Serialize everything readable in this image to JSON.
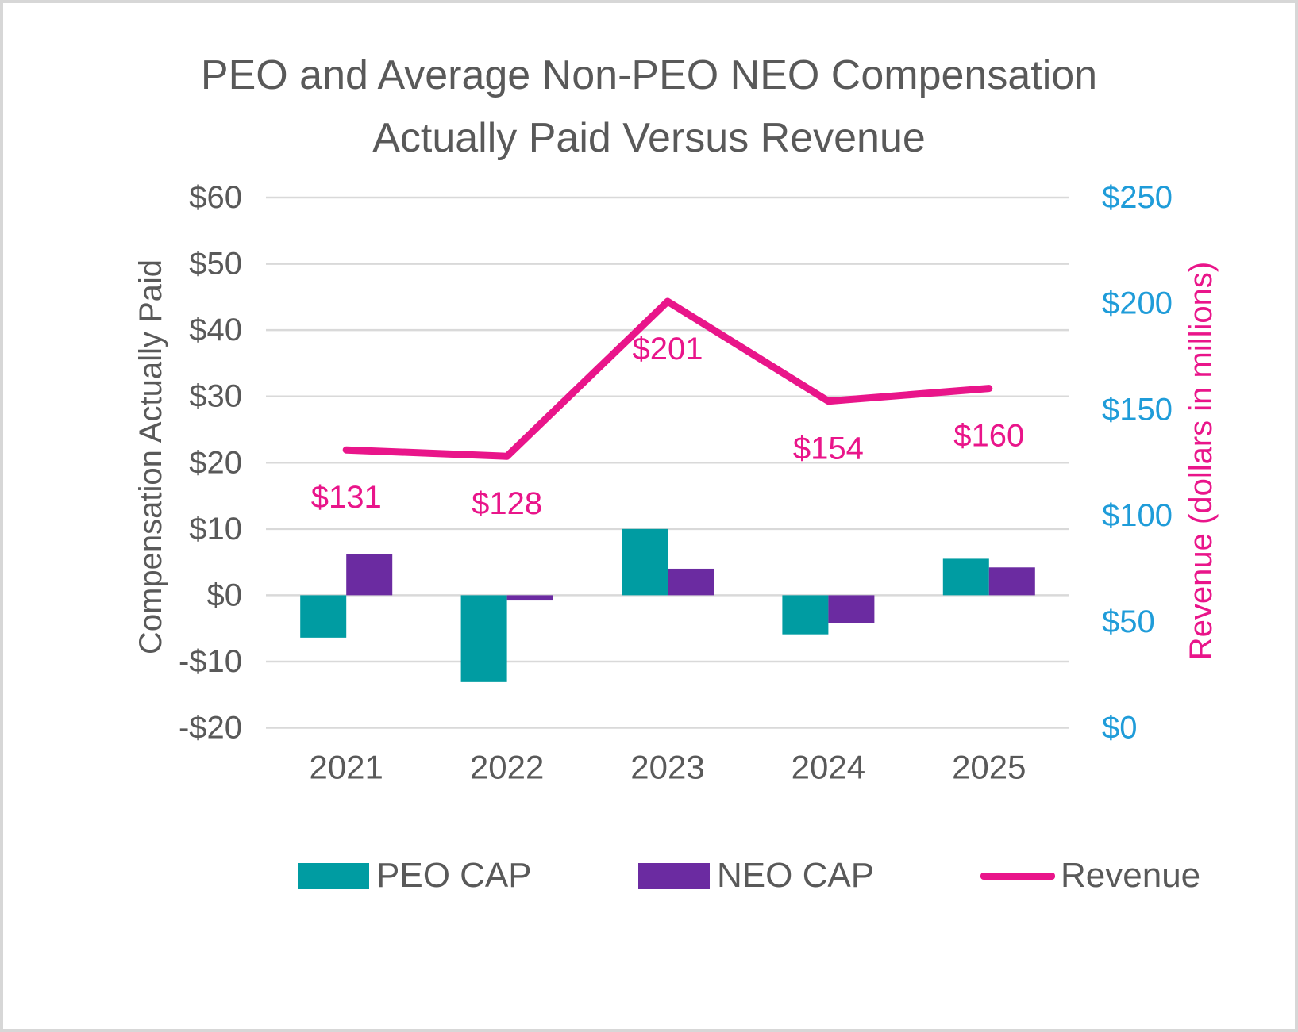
{
  "title": {
    "line1": "PEO and Average Non-PEO NEO Compensation",
    "line2": "Actually Paid Versus Revenue"
  },
  "chart_data": {
    "type": "combo",
    "categories": [
      "2021",
      "2022",
      "2023",
      "2024",
      "2025"
    ],
    "series": [
      {
        "name": "PEO CAP",
        "type": "bar",
        "axis": "left",
        "color": "#009CA2",
        "values": [
          -6.4,
          -13.1,
          10,
          -5.9,
          5.5
        ]
      },
      {
        "name": "NEO CAP",
        "type": "bar",
        "axis": "left",
        "color": "#6B2BA1",
        "values": [
          6.2,
          -0.8,
          4,
          -4.2,
          4.2
        ]
      },
      {
        "name": "Revenue",
        "type": "line",
        "axis": "right",
        "color": "#E9158A",
        "values": [
          131,
          128,
          201,
          154,
          160
        ],
        "data_labels": [
          "$131",
          "$128",
          "$201",
          "$154",
          "$160"
        ]
      }
    ],
    "left_axis": {
      "title": "Compensation Actually Paid",
      "min": -20,
      "max": 60,
      "step": 10,
      "tick_labels": [
        "$60",
        "$50",
        "$40",
        "$30",
        "$20",
        "$10",
        "$0",
        "-$10",
        "-$20"
      ],
      "tick_color": "#595959"
    },
    "right_axis": {
      "title": "Revenue (dollars in millions)",
      "min": 0,
      "max": 250,
      "step": 50,
      "tick_labels": [
        "$250",
        "$200",
        "$150",
        "$100",
        "$50",
        "$0"
      ],
      "tick_color": "#1F9CD9",
      "title_color": "#E9158A"
    },
    "grid": {
      "show": true,
      "color": "#D9D9D9"
    },
    "legend": {
      "position": "bottom",
      "items": [
        {
          "label": "PEO CAP",
          "marker": "rect",
          "color": "#009CA2"
        },
        {
          "label": "NEO CAP",
          "marker": "rect",
          "color": "#6B2BA1"
        },
        {
          "label": "Revenue",
          "marker": "line",
          "color": "#E9158A"
        }
      ]
    }
  }
}
